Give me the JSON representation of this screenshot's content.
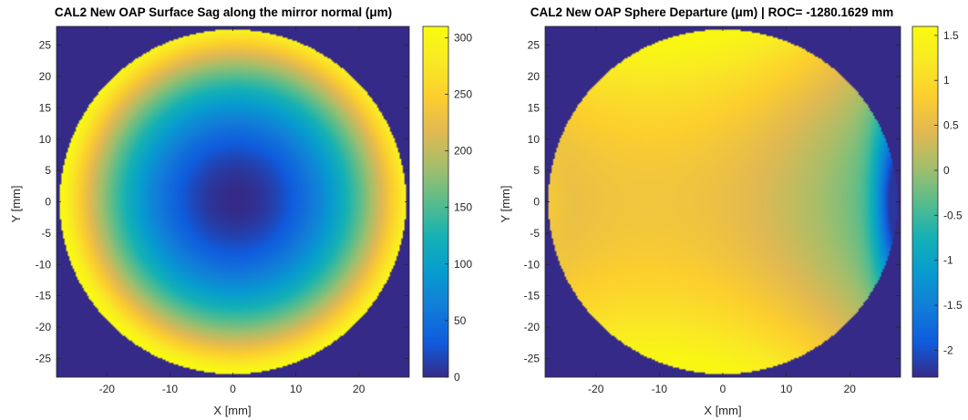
{
  "chart_data": [
    {
      "type": "heatmap",
      "title": "CAL2 New OAP Surface Sag along the mirror normal (μm)",
      "xlabel": "X [mm]",
      "ylabel": "Y [mm]",
      "xlim": [
        -28,
        28
      ],
      "ylim": [
        -28,
        28
      ],
      "xticks": [
        -20,
        -10,
        0,
        10,
        20
      ],
      "yticks": [
        25,
        20,
        15,
        10,
        5,
        0,
        -5,
        -10,
        -15,
        -20,
        -25
      ],
      "colorbar": {
        "ticks": [
          300,
          250,
          200,
          150,
          100,
          50,
          0
        ],
        "clim": [
          0,
          310
        ]
      },
      "colormap": "parula",
      "background_color": "#352a87",
      "aperture_radius": 27.5,
      "field": {
        "model": "radial_sag",
        "center": [
          0.5,
          0.5
        ],
        "min": 0,
        "max": 305
      }
    },
    {
      "type": "heatmap",
      "title": "CAL2 New OAP Sphere Departure (μm) | ROC= -1280.1629 mm",
      "xlabel": "X [mm]",
      "ylabel": "Y [mm]",
      "xlim": [
        -28,
        28
      ],
      "ylim": [
        -28,
        28
      ],
      "xticks": [
        -20,
        -10,
        0,
        10,
        20
      ],
      "yticks": [
        25,
        20,
        15,
        10,
        5,
        0,
        -5,
        -10,
        -15,
        -20,
        -25
      ],
      "colorbar": {
        "ticks": [
          1.5,
          1,
          0.5,
          0,
          -0.5,
          -1,
          -1.5,
          -2
        ],
        "clim": [
          -2.3,
          1.6
        ]
      },
      "colormap": "parula",
      "background_color": "#352a87",
      "aperture_radius": 27.5,
      "field": {
        "model": "saddle_departure",
        "min": -2.2,
        "max": 1.5
      }
    }
  ]
}
